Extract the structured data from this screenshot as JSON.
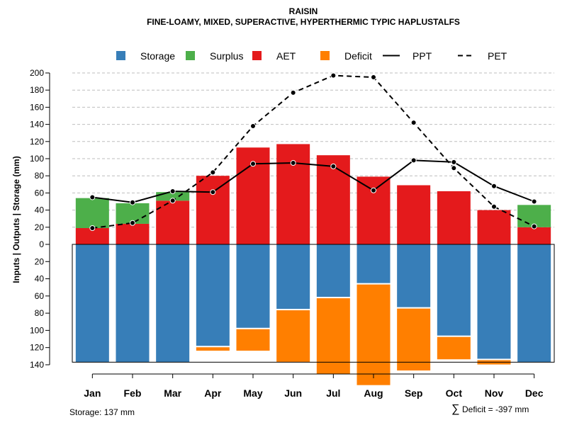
{
  "chart_data": {
    "type": "bar",
    "title": "RAISIN",
    "subtitle": "FINE-LOAMY, MIXED, SUPERACTIVE, HYPERTHERMIC TYPIC HAPLUSTALFS",
    "ylabel": "Inputs | Outputs | Storage     (mm)",
    "categories": [
      "Jan",
      "Feb",
      "Mar",
      "Apr",
      "May",
      "Jun",
      "Jul",
      "Aug",
      "Sep",
      "Oct",
      "Nov",
      "Dec"
    ],
    "upper_ticks": [
      "200",
      "180",
      "160",
      "140",
      "120",
      "100",
      "80",
      "60",
      "40",
      "20",
      "0"
    ],
    "lower_ticks": [
      "20",
      "40",
      "60",
      "80",
      "100",
      "120",
      "140"
    ],
    "upper_ylim": [
      0,
      200
    ],
    "lower_ylim": [
      0,
      140
    ],
    "series": [
      {
        "name": "AET",
        "values": [
          19,
          24,
          51,
          80,
          113,
          117,
          104,
          79,
          69,
          62,
          40,
          20
        ]
      },
      {
        "name": "Surplus",
        "values": [
          35,
          24,
          10,
          0,
          0,
          0,
          0,
          0,
          0,
          0,
          0,
          26
        ]
      },
      {
        "name": "Storage",
        "values": [
          137,
          137,
          137,
          118,
          97,
          75,
          61,
          45,
          73,
          106,
          133,
          137
        ]
      },
      {
        "name": "Deficit",
        "values": [
          0,
          0,
          0,
          4,
          25,
          60,
          88,
          117,
          72,
          26,
          5,
          0
        ]
      },
      {
        "name": "PPT",
        "values": [
          55,
          49,
          62,
          61,
          94,
          95,
          91,
          63,
          98,
          96,
          68,
          50
        ]
      },
      {
        "name": "PET",
        "values": [
          19,
          25,
          51,
          84,
          138,
          177,
          197,
          195,
          142,
          89,
          44,
          21
        ]
      }
    ],
    "legend": [
      {
        "label": "Storage",
        "kind": "box",
        "color": "#377eb8"
      },
      {
        "label": "Surplus",
        "kind": "box",
        "color": "#4daf4a"
      },
      {
        "label": "AET",
        "kind": "box",
        "color": "#e41a1c"
      },
      {
        "label": "Deficit",
        "kind": "box",
        "color": "#ff7f00"
      },
      {
        "label": "PPT",
        "kind": "solid"
      },
      {
        "label": "PET",
        "kind": "dashed"
      }
    ],
    "legend_position": "top",
    "grid": true
  },
  "colors": {
    "storage": "#377eb8",
    "surplus": "#4daf4a",
    "aet": "#e41a1c",
    "deficit": "#ff7f00",
    "grid": "#bebebe"
  },
  "footer": {
    "storage_note": "Storage: 137 mm",
    "deficit_symbol": "∑",
    "deficit_note": "Deficit = -397 mm"
  }
}
